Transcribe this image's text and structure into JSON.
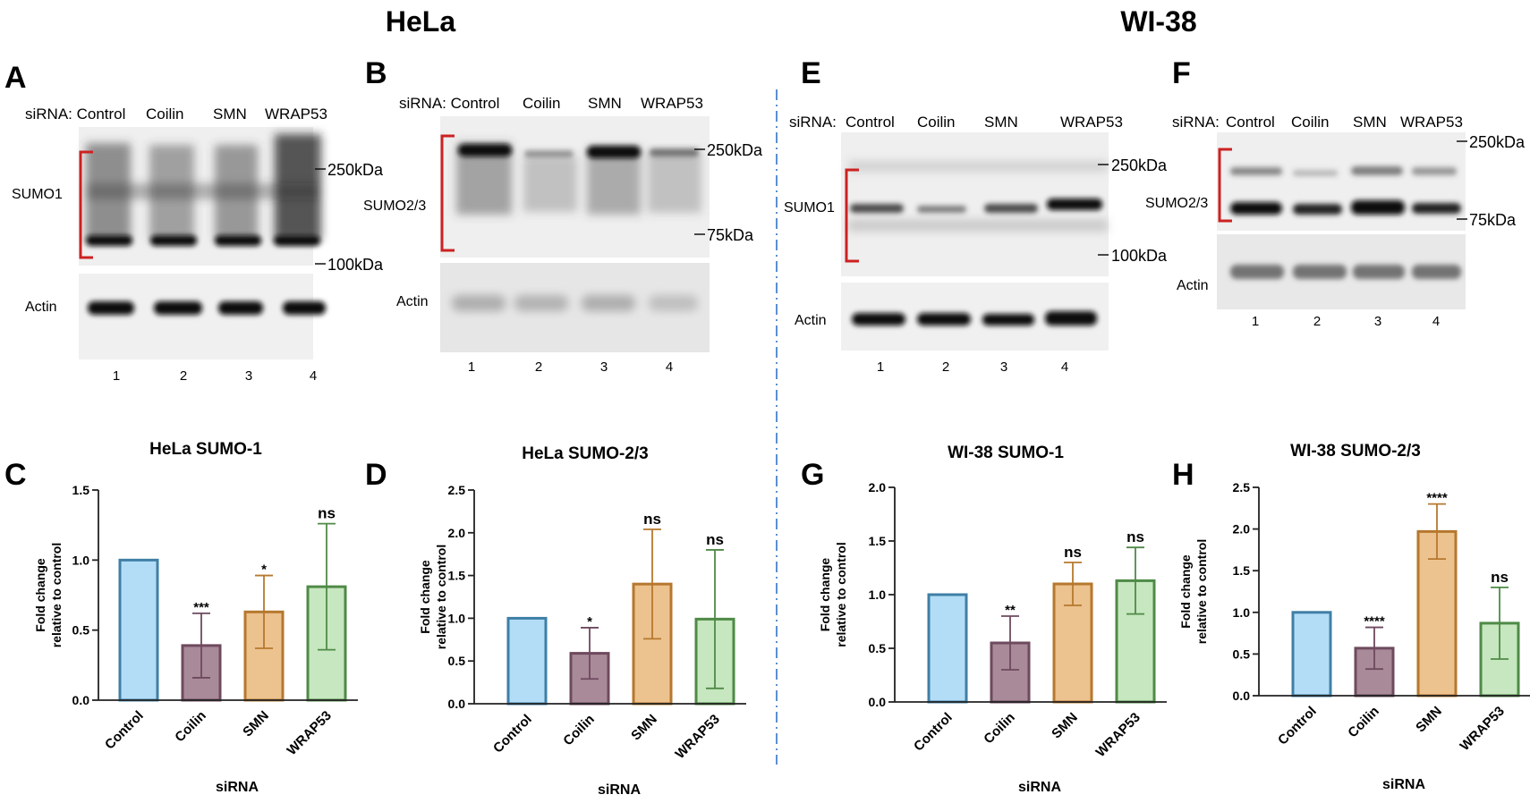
{
  "headings": {
    "left": "HeLa",
    "right": "WI-38"
  },
  "blots": [
    {
      "panel": "A",
      "lanes": [
        "siRNA: Control",
        "Coilin",
        "SMN",
        "WRAP53"
      ],
      "band_label": "SUMO1",
      "markers": [
        "250kDa",
        "100kDa"
      ],
      "loading_label": "Actin",
      "lane_numbers": [
        "1",
        "2",
        "3",
        "4"
      ]
    },
    {
      "panel": "B",
      "lanes": [
        "siRNA: Control",
        "Coilin",
        "SMN",
        "WRAP53"
      ],
      "band_label": "SUMO2/3",
      "markers": [
        "250kDa",
        "75kDa"
      ],
      "loading_label": "Actin",
      "lane_numbers": [
        "1",
        "2",
        "3",
        "4"
      ]
    },
    {
      "panel": "E",
      "lanes": [
        "siRNA:",
        "Control",
        "Coilin",
        "SMN",
        "WRAP53"
      ],
      "band_label": "SUMO1",
      "markers": [
        "250kDa",
        "100kDa"
      ],
      "loading_label": "Actin",
      "lane_numbers": [
        "1",
        "2",
        "3",
        "4"
      ]
    },
    {
      "panel": "F",
      "lanes": [
        "siRNA:",
        "Control",
        "Coilin",
        "SMN",
        "WRAP53"
      ],
      "band_label": "SUMO2/3",
      "markers": [
        "250kDa",
        "75kDa"
      ],
      "loading_label": "Actin",
      "lane_numbers": [
        "1",
        "2",
        "3",
        "4"
      ]
    }
  ],
  "colors": {
    "Control": {
      "fill": "#b3ddf7",
      "stroke": "#3f7fa6"
    },
    "Coilin": {
      "fill": "#a98a99",
      "stroke": "#6e4a5e"
    },
    "SMN": {
      "fill": "#ecc28f",
      "stroke": "#b6782e"
    },
    "WRAP53": {
      "fill": "#c6e7bf",
      "stroke": "#4f8a47"
    },
    "bracket": "#cc2222",
    "divider": "#5b8fd0"
  },
  "chart_data": [
    {
      "panel": "C",
      "type": "bar",
      "title": "HeLa SUMO-1",
      "categories": [
        "Control",
        "Coilin",
        "SMN",
        "WRAP53"
      ],
      "values": [
        1.0,
        0.39,
        0.63,
        0.81
      ],
      "errors": [
        0,
        0.23,
        0.26,
        0.45
      ],
      "significance": [
        "",
        "***",
        "*",
        "ns"
      ],
      "xlabel": "siRNA",
      "ylabel_line1": "Fold change",
      "ylabel_line2": "relative to control",
      "ylim": [
        0,
        1.5
      ],
      "yticks": [
        "0.0",
        "0.5",
        "1.0",
        "1.5"
      ]
    },
    {
      "panel": "D",
      "type": "bar",
      "title": "HeLa SUMO-2/3",
      "categories": [
        "Control",
        "Coilin",
        "SMN",
        "WRAP53"
      ],
      "values": [
        1.0,
        0.59,
        1.4,
        0.99
      ],
      "errors": [
        0,
        0.3,
        0.64,
        0.81
      ],
      "significance": [
        "",
        "*",
        "ns",
        "ns"
      ],
      "xlabel": "siRNA",
      "ylabel_line1": "Fold change",
      "ylabel_line2": "relative to control",
      "ylim": [
        0,
        2.5
      ],
      "yticks": [
        "0.0",
        "0.5",
        "1.0",
        "1.5",
        "2.0",
        "2.5"
      ]
    },
    {
      "panel": "G",
      "type": "bar",
      "title": "WI-38 SUMO-1",
      "categories": [
        "Control",
        "Coilin",
        "SMN",
        "WRAP53"
      ],
      "values": [
        1.0,
        0.55,
        1.1,
        1.13
      ],
      "errors": [
        0,
        0.25,
        0.2,
        0.31
      ],
      "significance": [
        "",
        "**",
        "ns",
        "ns"
      ],
      "xlabel": "siRNA",
      "ylabel_line1": "Fold change",
      "ylabel_line2": "relative to control",
      "ylim": [
        0,
        2.0
      ],
      "yticks": [
        "0.0",
        "0.5",
        "1.0",
        "1.5",
        "2.0"
      ]
    },
    {
      "panel": "H",
      "type": "bar",
      "title": "WI-38 SUMO-2/3",
      "categories": [
        "Control",
        "Coilin",
        "SMN",
        "WRAP53"
      ],
      "values": [
        1.0,
        0.57,
        1.97,
        0.87
      ],
      "errors": [
        0,
        0.25,
        0.33,
        0.43
      ],
      "significance": [
        "",
        "****",
        "****",
        "ns"
      ],
      "xlabel": "siRNA",
      "ylabel_line1": "Fold change",
      "ylabel_line2": "relative to control",
      "ylim": [
        0,
        2.5
      ],
      "yticks": [
        "0.0",
        "0.5",
        "1.0",
        "1.5",
        "2.0",
        "2.5"
      ]
    }
  ]
}
